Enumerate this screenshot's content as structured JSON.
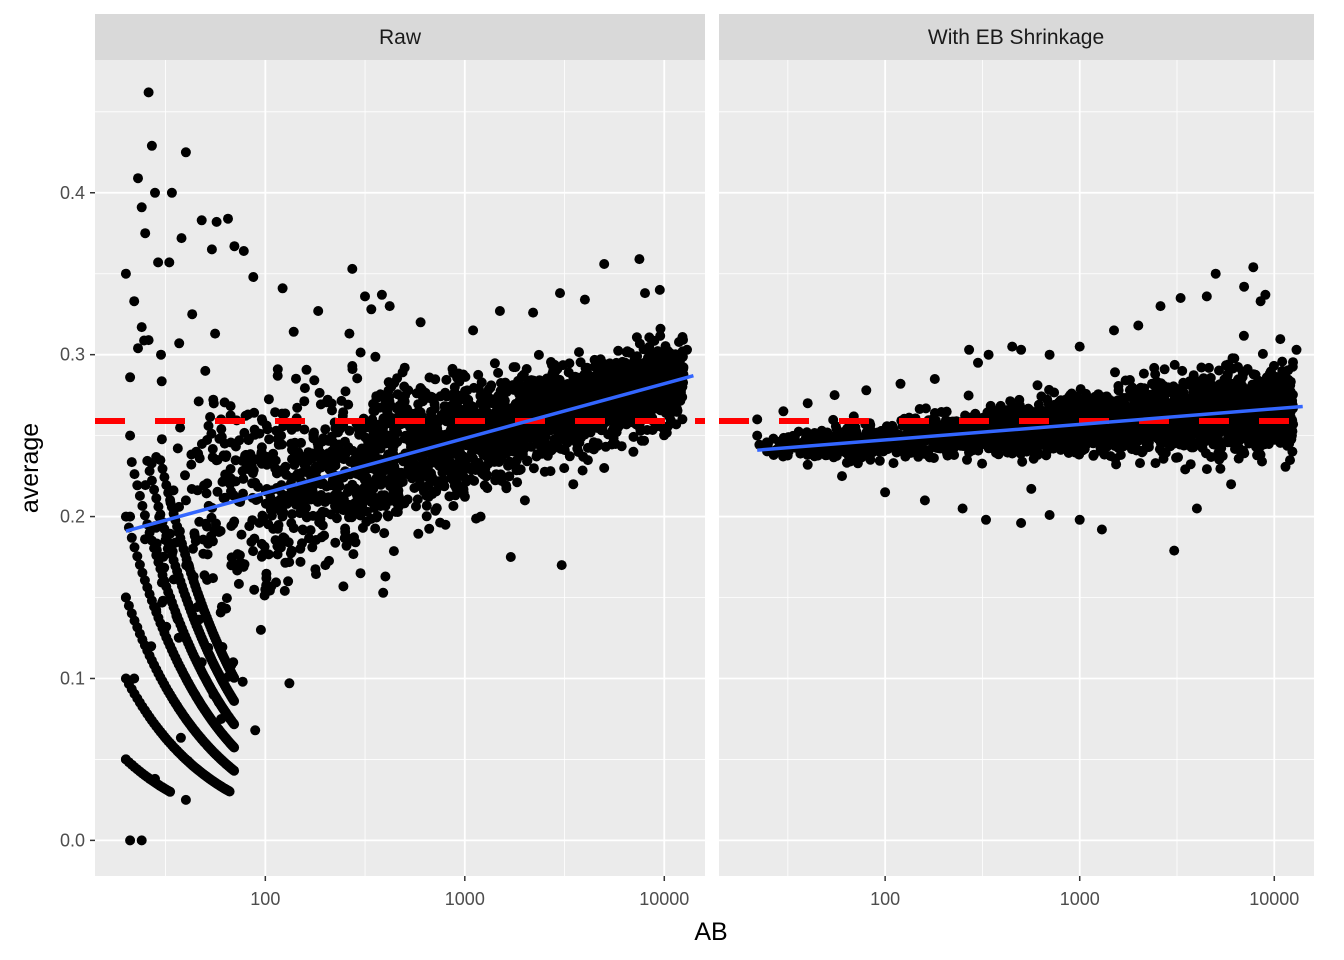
{
  "chart_data": {
    "type": "scatter",
    "facet_by": "facet",
    "xlabel": "AB",
    "ylabel": "average",
    "x_scale": "log10",
    "xlim": [
      14,
      16000
    ],
    "ylim": [
      -0.022,
      0.482
    ],
    "x_ticks": [
      100,
      1000,
      10000
    ],
    "x_tick_labels": [
      "100",
      "1000",
      "10000"
    ],
    "y_ticks": [
      0.0,
      0.1,
      0.2,
      0.3,
      0.4
    ],
    "y_tick_labels": [
      "0.0",
      "0.1",
      "0.2",
      "0.3",
      "0.4"
    ],
    "grid": true,
    "colors": {
      "panel_bg": "#ebebeb",
      "strip_bg": "#d9d9d9",
      "grid": "#ffffff",
      "points": "#000000",
      "reference_line": "#ff0000",
      "fit_line": "#3366ff"
    },
    "panels": [
      {
        "strip_label": "Raw",
        "reference_line": {
          "y": 0.259,
          "style": "dashed",
          "color": "#ff0000"
        },
        "fit_line": {
          "x": [
            20,
            14000
          ],
          "y": [
            0.191,
            0.287
          ],
          "color": "#3366ff"
        },
        "points": [
          [
            26,
            0.462
          ],
          [
            27,
            0.429
          ],
          [
            40,
            0.425
          ],
          [
            23,
            0.409
          ],
          [
            34,
            0.4
          ],
          [
            28,
            0.4
          ],
          [
            24,
            0.391
          ],
          [
            57,
            0.382
          ],
          [
            65,
            0.384
          ],
          [
            48,
            0.383
          ],
          [
            25,
            0.375
          ],
          [
            70,
            0.367
          ],
          [
            38,
            0.372
          ],
          [
            20,
            0.35
          ],
          [
            22,
            0.333
          ],
          [
            29,
            0.357
          ],
          [
            33,
            0.357
          ],
          [
            54,
            0.365
          ],
          [
            78,
            0.364
          ],
          [
            273,
            0.353
          ],
          [
            87,
            0.348
          ],
          [
            24,
            0.317
          ],
          [
            43,
            0.325
          ],
          [
            21,
            0.286
          ],
          [
            23,
            0.304
          ],
          [
            26,
            0.309
          ],
          [
            30,
            0.3
          ],
          [
            37,
            0.307
          ],
          [
            56,
            0.313
          ],
          [
            122,
            0.341
          ],
          [
            184,
            0.327
          ],
          [
            316,
            0.336
          ],
          [
            340,
            0.328
          ],
          [
            384,
            0.337
          ],
          [
            420,
            0.33
          ],
          [
            600,
            0.32
          ],
          [
            1100,
            0.315
          ],
          [
            1500,
            0.327
          ],
          [
            2200,
            0.326
          ],
          [
            3000,
            0.338
          ],
          [
            4000,
            0.334
          ],
          [
            5000,
            0.356
          ],
          [
            7500,
            0.359
          ],
          [
            8000,
            0.338
          ],
          [
            9500,
            0.34
          ],
          [
            13000,
            0.303
          ],
          [
            9000,
            0.287
          ],
          [
            11000,
            0.28
          ],
          [
            2000,
            0.26
          ],
          [
            3059,
            0.17
          ],
          [
            1700,
            0.175
          ],
          [
            1200,
            0.2
          ],
          [
            800,
            0.195
          ],
          [
            400,
            0.163
          ],
          [
            300,
            0.165
          ],
          [
            200,
            0.17
          ],
          [
            150,
            0.172
          ],
          [
            130,
            0.16
          ],
          [
            100,
            0.155
          ],
          [
            89,
            0.068
          ],
          [
            132,
            0.097
          ],
          [
            77,
            0.098
          ],
          [
            65,
            0.101
          ],
          [
            95,
            0.13
          ],
          [
            48,
            0.11
          ],
          [
            55,
            0.09
          ],
          [
            60,
            0.075
          ],
          [
            69,
            0.11
          ],
          [
            40,
            0.025
          ],
          [
            41,
            0.049
          ],
          [
            28,
            0.038
          ],
          [
            20,
            0.05
          ],
          [
            21,
            0.0
          ],
          [
            24,
            0.0
          ],
          [
            22,
            0.1
          ],
          [
            20,
            0.15
          ],
          [
            21,
            0.25
          ],
          [
            21,
            0.2
          ],
          [
            50,
            0.29
          ],
          [
            45,
            0.24
          ],
          [
            40,
            0.21
          ],
          [
            60,
            0.26
          ],
          [
            80,
            0.23
          ],
          [
            120,
            0.25
          ],
          [
            160,
            0.22
          ],
          [
            250,
            0.24
          ],
          [
            400,
            0.25
          ],
          [
            700,
            0.26
          ],
          [
            1200,
            0.27
          ],
          [
            2500,
            0.28
          ],
          [
            4500,
            0.275
          ],
          [
            6500,
            0.29
          ],
          [
            8500,
            0.3
          ],
          [
            10000,
            0.27
          ],
          [
            7000,
            0.24
          ],
          [
            5000,
            0.23
          ],
          [
            3500,
            0.22
          ],
          [
            2000,
            0.21
          ]
        ]
      },
      {
        "strip_label": "With EB Shrinkage",
        "reference_line": {
          "y": 0.259,
          "style": "dashed",
          "color": "#ff0000"
        },
        "fit_line": {
          "x": [
            22,
            14000
          ],
          "y": [
            0.241,
            0.268
          ],
          "color": "#3366ff"
        },
        "points": [
          [
            22,
            0.26
          ],
          [
            22,
            0.25
          ],
          [
            25,
            0.245
          ],
          [
            30,
            0.265
          ],
          [
            40,
            0.27
          ],
          [
            55,
            0.275
          ],
          [
            80,
            0.278
          ],
          [
            120,
            0.282
          ],
          [
            180,
            0.285
          ],
          [
            270,
            0.303
          ],
          [
            300,
            0.295
          ],
          [
            340,
            0.3
          ],
          [
            450,
            0.305
          ],
          [
            500,
            0.303
          ],
          [
            700,
            0.3
          ],
          [
            1000,
            0.305
          ],
          [
            1500,
            0.315
          ],
          [
            2000,
            0.318
          ],
          [
            2600,
            0.33
          ],
          [
            3300,
            0.335
          ],
          [
            4500,
            0.336
          ],
          [
            5000,
            0.35
          ],
          [
            7000,
            0.342
          ],
          [
            7800,
            0.354
          ],
          [
            8500,
            0.333
          ],
          [
            9000,
            0.337
          ],
          [
            13000,
            0.303
          ],
          [
            11000,
            0.29
          ],
          [
            3059,
            0.179
          ],
          [
            1300,
            0.192
          ],
          [
            1000,
            0.198
          ],
          [
            700,
            0.201
          ],
          [
            500,
            0.196
          ],
          [
            330,
            0.198
          ],
          [
            250,
            0.205
          ],
          [
            160,
            0.21
          ],
          [
            100,
            0.215
          ],
          [
            60,
            0.225
          ],
          [
            40,
            0.232
          ],
          [
            30,
            0.238
          ],
          [
            4000,
            0.205
          ],
          [
            6000,
            0.22
          ],
          [
            8000,
            0.245
          ],
          [
            200,
            0.25
          ],
          [
            400,
            0.255
          ],
          [
            900,
            0.26
          ],
          [
            1800,
            0.265
          ],
          [
            3500,
            0.27
          ],
          [
            6000,
            0.28
          ],
          [
            9500,
            0.275
          ]
        ]
      }
    ]
  }
}
